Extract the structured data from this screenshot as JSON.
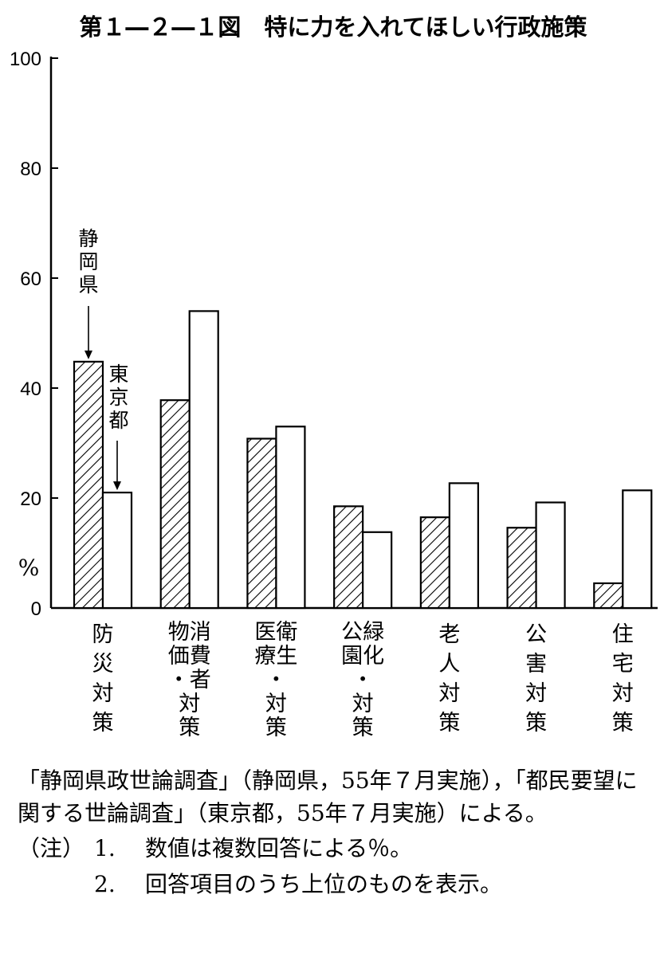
{
  "chart_data": {
    "type": "bar",
    "title": "第１―２―１図　特に力を入れてほしい行政施策",
    "unit_label": "%",
    "ylim": [
      0,
      100
    ],
    "yticks": [
      "0",
      "20",
      "40",
      "60",
      "80",
      "100"
    ],
    "grid": false,
    "categories": [
      [
        "防",
        "災",
        "対",
        "策"
      ],
      [
        "物消",
        "価費",
        "・者",
        "対",
        "策"
      ],
      [
        "医衛",
        "療生",
        "・",
        "対",
        "策"
      ],
      [
        "公緑",
        "園化",
        "・",
        "対",
        "策"
      ],
      [
        "老",
        "人",
        "対",
        "策"
      ],
      [
        "公",
        "害",
        "対",
        "策"
      ],
      [
        "住",
        "宅",
        "対",
        "策"
      ]
    ],
    "series": [
      {
        "name": "静岡県",
        "pattern": "hatched",
        "values": [
          44.8,
          37.8,
          30.8,
          18.5,
          16.5,
          14.6,
          4.5
        ]
      },
      {
        "name": "東京都",
        "pattern": "white",
        "values": [
          21.0,
          54.0,
          33.0,
          13.8,
          22.7,
          19.2,
          21.4
        ]
      }
    ],
    "annotations": {
      "series1_label": [
        "静",
        "岡",
        "県"
      ],
      "series2_label": [
        "東",
        "京",
        "都"
      ]
    }
  },
  "notes": {
    "source": "「静岡県政世論調査」（静岡県，55年７月実施），「都民要望に関する世論調査」（東京都，55年７月実施）による。",
    "label": "（注）",
    "items": [
      {
        "num": "1.",
        "text": "数値は複数回答による％。"
      },
      {
        "num": "2.",
        "text": "回答項目のうち上位のものを表示。"
      }
    ]
  }
}
